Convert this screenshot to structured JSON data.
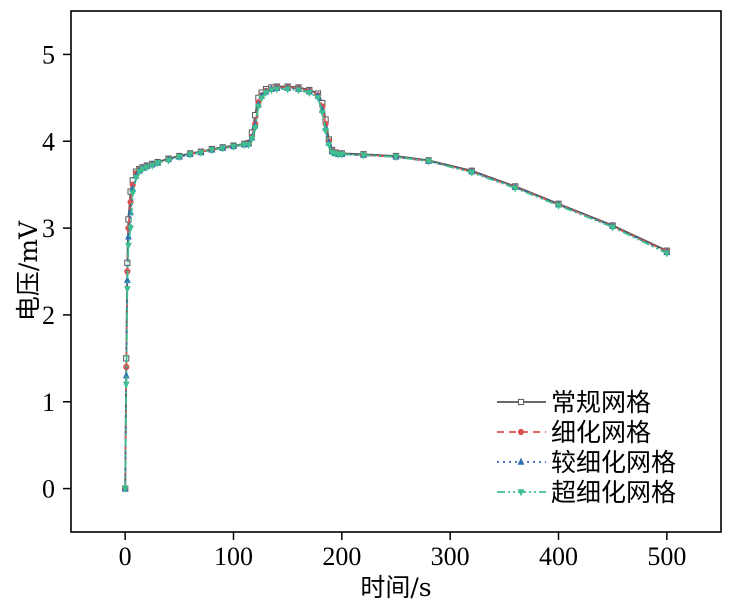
{
  "chart_data": {
    "type": "line",
    "xlabel": "时间/s",
    "ylabel": "电压/mV",
    "xlim": [
      -50,
      550
    ],
    "ylim": [
      -0.5,
      5.5
    ],
    "xticks": [
      0,
      100,
      200,
      300,
      400,
      500
    ],
    "yticks": [
      0,
      1,
      2,
      3,
      4,
      5
    ],
    "grid": false,
    "legend_position": "bottom-right",
    "series": [
      {
        "name": "常规网格",
        "color": "#555555",
        "dash": "",
        "marker": "square",
        "x": [
          0,
          1,
          2,
          3,
          5,
          7,
          10,
          13,
          16,
          20,
          25,
          30,
          40,
          50,
          60,
          70,
          80,
          90,
          100,
          110,
          114,
          117,
          120,
          123,
          126,
          130,
          135,
          140,
          150,
          160,
          170,
          178,
          182,
          185,
          188,
          191,
          194,
          197,
          200,
          220,
          250,
          280,
          320,
          360,
          400,
          450,
          500
        ],
        "y": [
          0,
          1.5,
          2.6,
          3.1,
          3.42,
          3.55,
          3.65,
          3.68,
          3.7,
          3.72,
          3.74,
          3.76,
          3.8,
          3.83,
          3.86,
          3.88,
          3.91,
          3.93,
          3.95,
          3.97,
          3.98,
          4.1,
          4.3,
          4.5,
          4.56,
          4.6,
          4.62,
          4.63,
          4.63,
          4.62,
          4.59,
          4.55,
          4.44,
          4.25,
          4.02,
          3.9,
          3.87,
          3.86,
          3.86,
          3.85,
          3.83,
          3.78,
          3.66,
          3.48,
          3.28,
          3.03,
          2.74
        ]
      },
      {
        "name": "细化网格",
        "color": "#d9534f",
        "dash": "7,5",
        "marker": "circle",
        "x": [
          0,
          1,
          2,
          3,
          5,
          7,
          10,
          13,
          16,
          20,
          25,
          30,
          40,
          50,
          60,
          70,
          80,
          90,
          100,
          110,
          114,
          117,
          120,
          123,
          126,
          130,
          135,
          140,
          150,
          160,
          170,
          178,
          182,
          185,
          188,
          191,
          194,
          197,
          200,
          220,
          250,
          280,
          320,
          360,
          400,
          450,
          500
        ],
        "y": [
          0,
          1.4,
          2.5,
          3.0,
          3.3,
          3.5,
          3.63,
          3.67,
          3.69,
          3.71,
          3.73,
          3.75,
          3.79,
          3.82,
          3.85,
          3.88,
          3.9,
          3.92,
          3.94,
          3.96,
          3.97,
          4.05,
          4.2,
          4.45,
          4.53,
          4.58,
          4.6,
          4.62,
          4.62,
          4.61,
          4.58,
          4.53,
          4.4,
          4.2,
          4.0,
          3.89,
          3.87,
          3.86,
          3.85,
          3.84,
          3.82,
          3.77,
          3.65,
          3.47,
          3.27,
          3.02,
          2.73
        ]
      },
      {
        "name": "较细化网格",
        "color": "#2f6fb5",
        "dash": "2,4",
        "marker": "triangle",
        "x": [
          0,
          1,
          2,
          3,
          5,
          7,
          10,
          13,
          16,
          20,
          25,
          30,
          40,
          50,
          60,
          70,
          80,
          90,
          100,
          110,
          114,
          117,
          120,
          123,
          126,
          130,
          135,
          140,
          150,
          160,
          170,
          178,
          182,
          185,
          188,
          191,
          194,
          197,
          200,
          220,
          250,
          280,
          320,
          360,
          400,
          450,
          500
        ],
        "y": [
          0,
          1.3,
          2.4,
          2.9,
          3.18,
          3.45,
          3.6,
          3.66,
          3.69,
          3.71,
          3.73,
          3.75,
          3.79,
          3.82,
          3.85,
          3.87,
          3.9,
          3.92,
          3.94,
          3.96,
          3.97,
          4.04,
          4.18,
          4.42,
          4.52,
          4.57,
          4.6,
          4.61,
          4.61,
          4.6,
          4.57,
          4.52,
          4.36,
          4.15,
          3.98,
          3.88,
          3.86,
          3.85,
          3.85,
          3.84,
          3.82,
          3.77,
          3.65,
          3.47,
          3.27,
          3.02,
          2.72
        ]
      },
      {
        "name": "超细化网格",
        "color": "#3fbf8f",
        "dash": "8,3,2,3,2,3",
        "marker": "triangle-down",
        "x": [
          0,
          1,
          2,
          3,
          5,
          7,
          10,
          13,
          16,
          20,
          25,
          30,
          40,
          50,
          60,
          70,
          80,
          90,
          100,
          110,
          114,
          117,
          120,
          123,
          126,
          130,
          135,
          140,
          150,
          160,
          170,
          178,
          182,
          185,
          188,
          191,
          194,
          197,
          200,
          220,
          250,
          280,
          320,
          360,
          400,
          450,
          500
        ],
        "y": [
          0,
          1.2,
          2.3,
          2.8,
          3.0,
          3.4,
          3.58,
          3.65,
          3.68,
          3.7,
          3.72,
          3.75,
          3.78,
          3.82,
          3.85,
          3.87,
          3.9,
          3.92,
          3.94,
          3.96,
          3.96,
          4.03,
          4.15,
          4.4,
          4.5,
          4.56,
          4.59,
          4.6,
          4.6,
          4.59,
          4.56,
          4.5,
          4.33,
          4.12,
          3.96,
          3.87,
          3.86,
          3.85,
          3.85,
          3.84,
          3.82,
          3.77,
          3.64,
          3.46,
          3.26,
          3.01,
          2.71
        ]
      }
    ]
  }
}
